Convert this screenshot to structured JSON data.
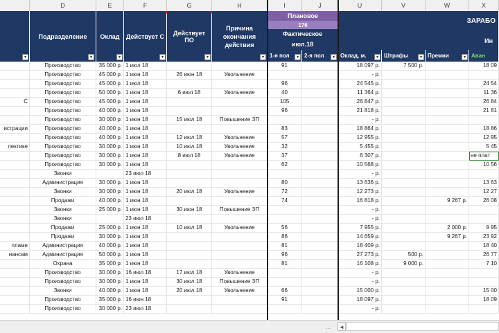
{
  "columns": {
    "letters": [
      "D",
      "E",
      "F",
      "G",
      "H",
      "I",
      "J",
      "U",
      "V",
      "W",
      "X"
    ]
  },
  "header": {
    "podrazdelenie": "Подразделение",
    "oklad": "Оклад",
    "deystvuet_s": "Действует С",
    "deystvuet_po": "Действует ПО",
    "prichina": "Причина окончания действия",
    "planovoe": "Плановое",
    "planovoe_value": "176",
    "fakticheskoe": "Фактическое",
    "month": "июл.18",
    "half1": "1-я пол",
    "half2": "2-я пол",
    "oklad_m": "Оклад, м.",
    "shtrafy": "Штрафы",
    "premii": "Премии",
    "avans": "Аван",
    "zarabotok": "ЗАРАБО",
    "in": "Ин"
  },
  "rows": [
    {
      "a": "",
      "d": "Производство",
      "e": "35 000 р.",
      "f": "1 июл 18",
      "g": "",
      "h": "",
      "i": "91",
      "u": "18 097 р.",
      "v": "7 500 р.",
      "w": "",
      "x": "18 09"
    },
    {
      "a": "",
      "d": "Производство",
      "e": "45 000 р.",
      "f": "1 июн 18",
      "g": "26 июн 18",
      "h": "Увольнение",
      "i": "",
      "u": "- р.",
      "v": "",
      "w": "",
      "x": ""
    },
    {
      "a": "",
      "d": "Производство",
      "e": "45 000 р.",
      "f": "1 июл 18",
      "g": "",
      "h": "",
      "i": "96",
      "u": "24 545 р.",
      "v": "",
      "w": "",
      "x": "24 54"
    },
    {
      "a": "",
      "d": "Производство",
      "e": "50 000 р.",
      "f": "1 июн 18",
      "g": "6 июл 18",
      "h": "Увольнение",
      "i": "40",
      "u": "11 364 р.",
      "v": "",
      "w": "",
      "x": "11 36"
    },
    {
      "a": "С",
      "d": "Производство",
      "e": "45 000 р.",
      "f": "1 июн 18",
      "g": "",
      "h": "",
      "i": "105",
      "u": "26 847 р.",
      "v": "",
      "w": "",
      "x": "26 84"
    },
    {
      "a": "",
      "d": "Производство",
      "e": "40 000 р.",
      "f": "1 июн 18",
      "g": "",
      "h": "",
      "i": "96",
      "u": "21 818 р.",
      "v": "",
      "w": "",
      "x": "21 81"
    },
    {
      "a": "",
      "d": "Производство",
      "e": "30 000 р.",
      "f": "1 июн 18",
      "g": "15 июл 18",
      "h": "Повышение ЗП",
      "i": "",
      "u": "- р.",
      "v": "",
      "w": "",
      "x": ""
    },
    {
      "a": "истрации",
      "d": "Производство",
      "e": "40 000 р.",
      "f": "1 июн 18",
      "g": "",
      "h": "",
      "i": "83",
      "u": "18 864 р.",
      "v": "",
      "w": "",
      "x": "18 86"
    },
    {
      "a": "",
      "d": "Производство",
      "e": "40 000 р.",
      "f": "1 июн 18",
      "g": "12 июл 18",
      "h": "Увольнение",
      "i": "57",
      "u": "12 955 р.",
      "v": "",
      "w": "",
      "x": "12 95"
    },
    {
      "a": "лектике",
      "d": "Производство",
      "e": "30 000 р.",
      "f": "1 июн 18",
      "g": "10 июл 18",
      "h": "Увольнение",
      "i": "32",
      "u": "5 455 р.",
      "v": "",
      "w": "",
      "x": "5 45"
    },
    {
      "a": "",
      "d": "Производство",
      "e": "30 000 р.",
      "f": "1 июн 18",
      "g": "8 июл 18",
      "h": "Увольнение",
      "i": "37",
      "u": "6 307 р.",
      "v": "",
      "w": "",
      "x": "не плат"
    },
    {
      "a": "",
      "d": "Производство",
      "e": "30 000 р.",
      "f": "1 июн 18",
      "g": "",
      "h": "",
      "i": "62",
      "u": "10 568 р.",
      "v": "",
      "w": "",
      "x": "10 56"
    },
    {
      "a": "",
      "d": "Звонки",
      "e": "",
      "f": "23 июл 18",
      "g": "",
      "h": "",
      "i": "",
      "u": "- р.",
      "v": "",
      "w": "",
      "x": ""
    },
    {
      "a": "",
      "d": "Администрация",
      "e": "30 000 р.",
      "f": "1 июн 18",
      "g": "",
      "h": "",
      "i": "80",
      "u": "13 636 р.",
      "v": "",
      "w": "",
      "x": "13 63"
    },
    {
      "a": "",
      "d": "Звонки",
      "e": "30 000 р.",
      "f": "1 июн 18",
      "g": "20 июл 18",
      "h": "Увольнение",
      "i": "72",
      "u": "12 273 р.",
      "v": "",
      "w": "",
      "x": "12 27"
    },
    {
      "a": "",
      "d": "Продажи",
      "e": "40 000 р.",
      "f": "1 июн 18",
      "g": "",
      "h": "",
      "i": "74",
      "u": "16 818 р.",
      "v": "",
      "w": "9 267 р.",
      "x": "26 08"
    },
    {
      "a": "",
      "d": "Звонки",
      "e": "25 000 р.",
      "f": "1 июн 18",
      "g": "30 июн 18",
      "h": "Повышение ЗП",
      "i": "",
      "u": "- р.",
      "v": "",
      "w": "",
      "x": ""
    },
    {
      "a": "",
      "d": "Звонки",
      "e": "",
      "f": "23 июл 18",
      "g": "",
      "h": "",
      "i": "",
      "u": "- р.",
      "v": "",
      "w": "",
      "x": ""
    },
    {
      "a": "",
      "d": "Продажи",
      "e": "25 000 р.",
      "f": "1 июн 18",
      "g": "10 июл 18",
      "h": "Увольнение",
      "i": "56",
      "u": "7 955 р.",
      "v": "",
      "w": "2 000 р.",
      "x": "9 95"
    },
    {
      "a": "",
      "d": "Продажи",
      "e": "30 000 р.",
      "f": "1 июн 18",
      "g": "",
      "h": "",
      "i": "86",
      "u": "14 659 р.",
      "v": "",
      "w": "9 267 р.",
      "x": "23 92"
    },
    {
      "a": "пламе",
      "d": "Администрация",
      "e": "40 000 р.",
      "f": "1 июн 18",
      "g": "",
      "h": "",
      "i": "81",
      "u": "18 409 р.",
      "v": "",
      "w": "",
      "x": "18 40"
    },
    {
      "a": "нансам",
      "d": "Администрация",
      "e": "50 000 р.",
      "f": "1 июн 18",
      "g": "",
      "h": "",
      "i": "96",
      "u": "27 273 р.",
      "v": "500 р.",
      "w": "",
      "x": "26 77"
    },
    {
      "a": "",
      "d": "Охрана",
      "e": "35 000 р.",
      "f": "1 июн 18",
      "g": "",
      "h": "",
      "i": "81",
      "u": "16 108 р.",
      "v": "9 000 р.",
      "w": "",
      "x": "7 10"
    },
    {
      "a": "",
      "d": "Производство",
      "e": "30 000 р.",
      "f": "16 июл 18",
      "g": "17 июл 18",
      "h": "Увольнение",
      "i": "",
      "u": "- р.",
      "v": "",
      "w": "",
      "x": ""
    },
    {
      "a": "",
      "d": "Производство",
      "e": "30 000 р.",
      "f": "1 июн 18",
      "g": "30 июл 18",
      "h": "Повышение ЗП",
      "i": "",
      "u": "- р.",
      "v": "",
      "w": "",
      "x": ""
    },
    {
      "a": "",
      "d": "Звонки",
      "e": "40 000 р.",
      "f": "1 июн 18",
      "g": "20 июл 18",
      "h": "Увольнение",
      "i": "66",
      "u": "15 000 р.",
      "v": "",
      "w": "",
      "x": "15 00"
    },
    {
      "a": "",
      "d": "Производство",
      "e": "35 000 р.",
      "f": "16 июн 18",
      "g": "",
      "h": "",
      "i": "91",
      "u": "18 097 р.",
      "v": "",
      "w": "",
      "x": "18 09"
    },
    {
      "a": "",
      "d": "Производство",
      "e": "30 000 р.",
      "f": "23 июл 18",
      "g": "",
      "h": "",
      "i": "",
      "u": "- р.",
      "v": "",
      "w": "",
      "x": ""
    }
  ],
  "scroll": {
    "dots": "...",
    "left_arrow": "◄"
  }
}
